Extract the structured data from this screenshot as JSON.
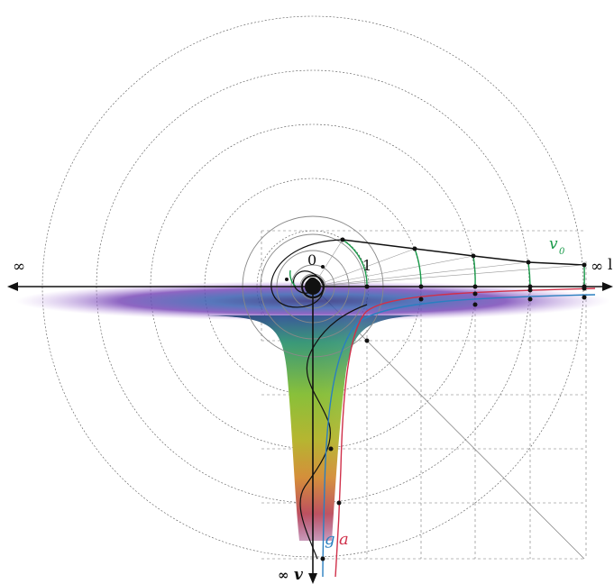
{
  "labels": {
    "infinity_left": "∞",
    "infinity_right": "∞",
    "right_edge_partial": "l",
    "origin": "0",
    "unit": "1",
    "v0_main": "v",
    "v0_sub": "0",
    "g": "g",
    "a": "a",
    "infinity_bottom": "∞",
    "v_bottom": "v"
  },
  "colors": {
    "axis": "#111111",
    "dotted_circle": "#555555",
    "solid_circle": "#888888",
    "green_arc": "#1a9a4a",
    "curve_g": "#2a7fc0",
    "curve_a": "#d0304a",
    "curve_black": "#111111",
    "grid": "#777777",
    "v0_label": "#1a9a4a",
    "funnel_top": "#3a4a9a",
    "funnel_mid": "#7ab73a",
    "funnel_low": "#e08a30",
    "funnel_bottom": "#b03a6a"
  },
  "icons": {
    "origin_marker": "filled-circle-icon"
  }
}
